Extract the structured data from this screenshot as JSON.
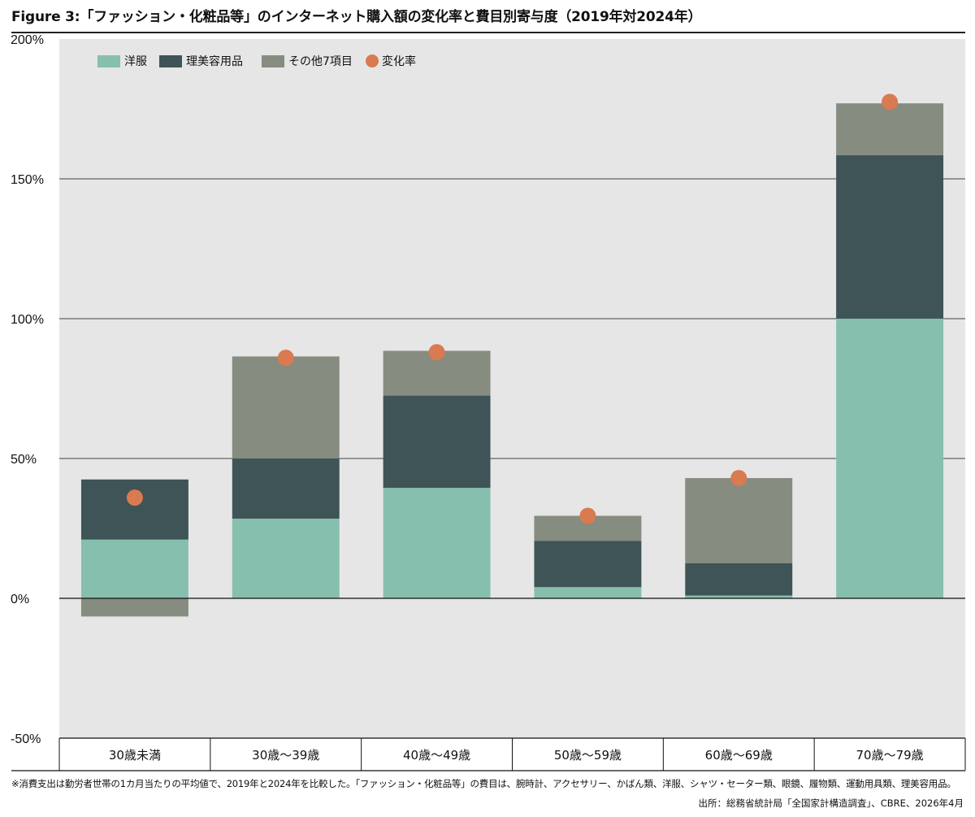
{
  "chart_data": {
    "type": "bar",
    "stacked": true,
    "title": "Figure 3:「ファッション・化粧品等」のインターネット購入額の変化率と費目別寄与度（2019年対2024年）",
    "categories": [
      "30歳未満",
      "30歳〜39歳",
      "40歳〜49歳",
      "50歳〜59歳",
      "60歳〜69歳",
      "70歳〜79歳"
    ],
    "series": [
      {
        "name": "洋服",
        "kind": "bar",
        "color": "#86BFAE",
        "values": [
          21,
          28.5,
          39.5,
          4,
          1,
          100
        ]
      },
      {
        "name": "理美容用品",
        "kind": "bar",
        "color": "#3F5457",
        "values": [
          21.5,
          21.5,
          33,
          16.5,
          11.5,
          58.5
        ]
      },
      {
        "name": "その他7項目",
        "kind": "bar",
        "color": "#868C80",
        "values": [
          -6.5,
          36.5,
          16,
          9,
          30.5,
          18.5
        ]
      },
      {
        "name": "変化率",
        "kind": "point",
        "color": "#D97A50",
        "values": [
          36,
          86,
          88,
          29.5,
          43,
          177.5
        ]
      }
    ],
    "yticks": [
      "200%",
      "150%",
      "100%",
      "50%",
      "0%",
      "-50%"
    ],
    "ytick_values": [
      200,
      150,
      100,
      50,
      0,
      -50
    ],
    "ylim": [
      -50,
      200
    ],
    "grid": true,
    "legend": "top-left",
    "background": "#E6E6E6",
    "xlabel": "",
    "ylabel": ""
  },
  "note": "※消費支出は勤労者世帯の1カ月当たりの平均値で、2019年と2024年を比較した。「ファッション・化粧品等」の費目は、腕時計、アクセサリー、かばん類、洋服、シャツ・セーター類、眼鏡、履物類、運動用具類、理美容用品。",
  "source": "出所：総務省統計局「全国家計構造調査」、CBRE、2026年4月"
}
